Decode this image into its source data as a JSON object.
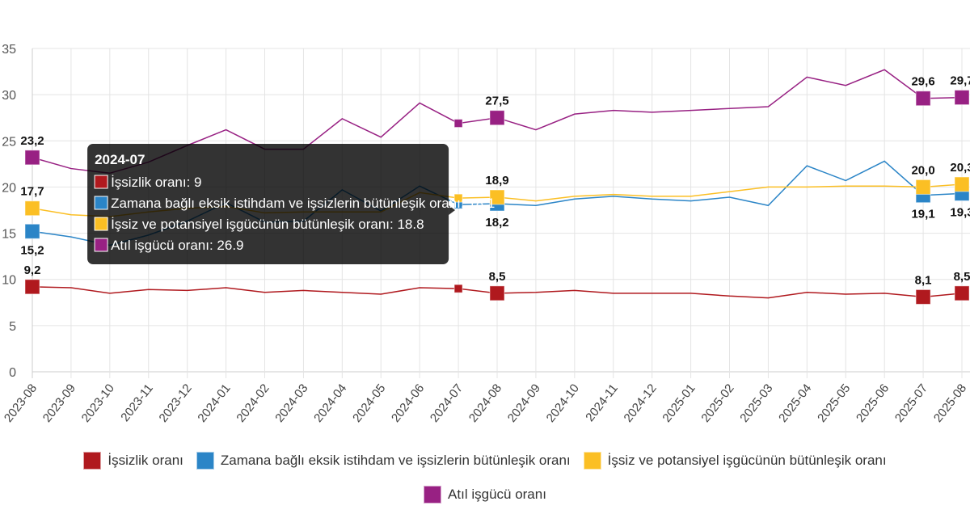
{
  "chart_data": {
    "type": "line",
    "title": "",
    "xlabel": "",
    "ylabel": "",
    "ylim": [
      0,
      35
    ],
    "yticks": [
      0,
      5,
      10,
      15,
      20,
      25,
      30,
      35
    ],
    "grid": true,
    "legend_position": "bottom",
    "categories": [
      "2023-08",
      "2023-09",
      "2023-10",
      "2023-11",
      "2023-12",
      "2024-01",
      "2024-02",
      "2024-03",
      "2024-04",
      "2024-05",
      "2024-06",
      "2024-07",
      "2024-08",
      "2024-09",
      "2024-10",
      "2024-11",
      "2024-12",
      "2025-01",
      "2025-02",
      "2025-03",
      "2025-04",
      "2025-05",
      "2025-06",
      "2025-07",
      "2025-08"
    ],
    "labeled_indices": [
      0,
      12,
      23,
      24
    ],
    "series": [
      {
        "name": "İşsizlik oranı",
        "color": "#b0191e",
        "label_pos": "above",
        "values": [
          9.2,
          9.1,
          8.5,
          8.9,
          8.8,
          9.1,
          8.6,
          8.8,
          8.6,
          8.4,
          9.1,
          9.0,
          8.5,
          8.6,
          8.8,
          8.5,
          8.5,
          8.5,
          8.2,
          8.0,
          8.6,
          8.4,
          8.5,
          8.1,
          8.5
        ]
      },
      {
        "name": "Zamana bağlı eksik istihdam ve işsizlerin bütünleşik oranı",
        "color": "#2b85c7",
        "label_pos": "below",
        "values": [
          15.2,
          14.6,
          13.7,
          14.8,
          16.3,
          18.3,
          16.2,
          16.3,
          19.7,
          17.4,
          20.1,
          18.1,
          18.2,
          18.0,
          18.7,
          19.0,
          18.7,
          18.5,
          18.9,
          18.0,
          22.3,
          20.7,
          22.8,
          19.1,
          19.3
        ]
      },
      {
        "name": "İşsiz ve potansiyel işgücünün bütünleşik oranı",
        "color": "#fbbf24",
        "label_pos": "above",
        "values": [
          17.7,
          17.0,
          16.8,
          17.3,
          17.7,
          17.9,
          17.2,
          17.3,
          17.3,
          17.3,
          19.4,
          18.8,
          18.9,
          18.5,
          19.0,
          19.2,
          19.0,
          19.0,
          19.5,
          20.0,
          20.0,
          20.1,
          20.1,
          20.0,
          20.3
        ]
      },
      {
        "name": "Atıl işgücü oranı",
        "color": "#982183",
        "label_pos": "above",
        "values": [
          23.2,
          22.0,
          21.5,
          22.7,
          24.5,
          26.2,
          24.1,
          24.1,
          27.4,
          25.4,
          29.1,
          26.9,
          27.5,
          26.2,
          27.9,
          28.3,
          28.1,
          28.3,
          28.5,
          28.7,
          31.9,
          31.0,
          32.7,
          29.6,
          29.7
        ]
      }
    ],
    "tooltip": {
      "title": "2024-07",
      "hover_index": 11,
      "lines": [
        "İşsizlik oranı: 9",
        "Zamana bağlı eksik istihdam ve işsizlerin bütünleşik oranı: 18.1",
        "İşsiz ve potansiyel işgücünün bütünleşik oranı: 18.8",
        "Atıl işgücü oranı: 26.9"
      ]
    }
  }
}
